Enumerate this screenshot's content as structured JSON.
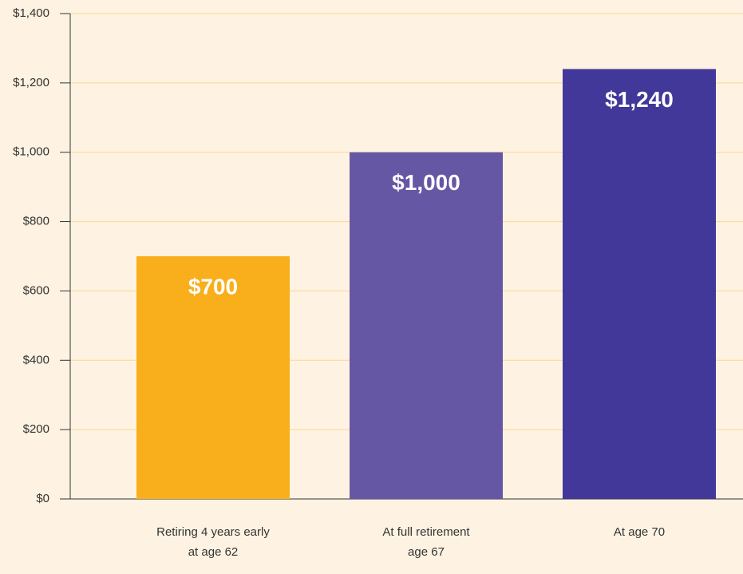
{
  "chart_data": {
    "type": "bar",
    "categories": [
      [
        "Retiring 4 years early",
        "at age 62"
      ],
      [
        "At full retirement",
        "age 67"
      ],
      [
        "At age 70"
      ]
    ],
    "values": [
      700,
      1000,
      1240
    ],
    "value_labels": [
      "$700",
      "$1,000",
      "$1,240"
    ],
    "colors": [
      "#f9ae1b",
      "#6657a4",
      "#41389a"
    ],
    "ylim": [
      0,
      1400
    ],
    "yticks": [
      {
        "value": 0,
        "label": "$0"
      },
      {
        "value": 200,
        "label": "$200"
      },
      {
        "value": 400,
        "label": "$400"
      },
      {
        "value": 600,
        "label": "$600"
      },
      {
        "value": 800,
        "label": "$800"
      },
      {
        "value": 1000,
        "label": "$1,000"
      },
      {
        "value": 1200,
        "label": "$1,200"
      },
      {
        "value": 1400,
        "label": "$1,400"
      }
    ],
    "grid": true
  }
}
